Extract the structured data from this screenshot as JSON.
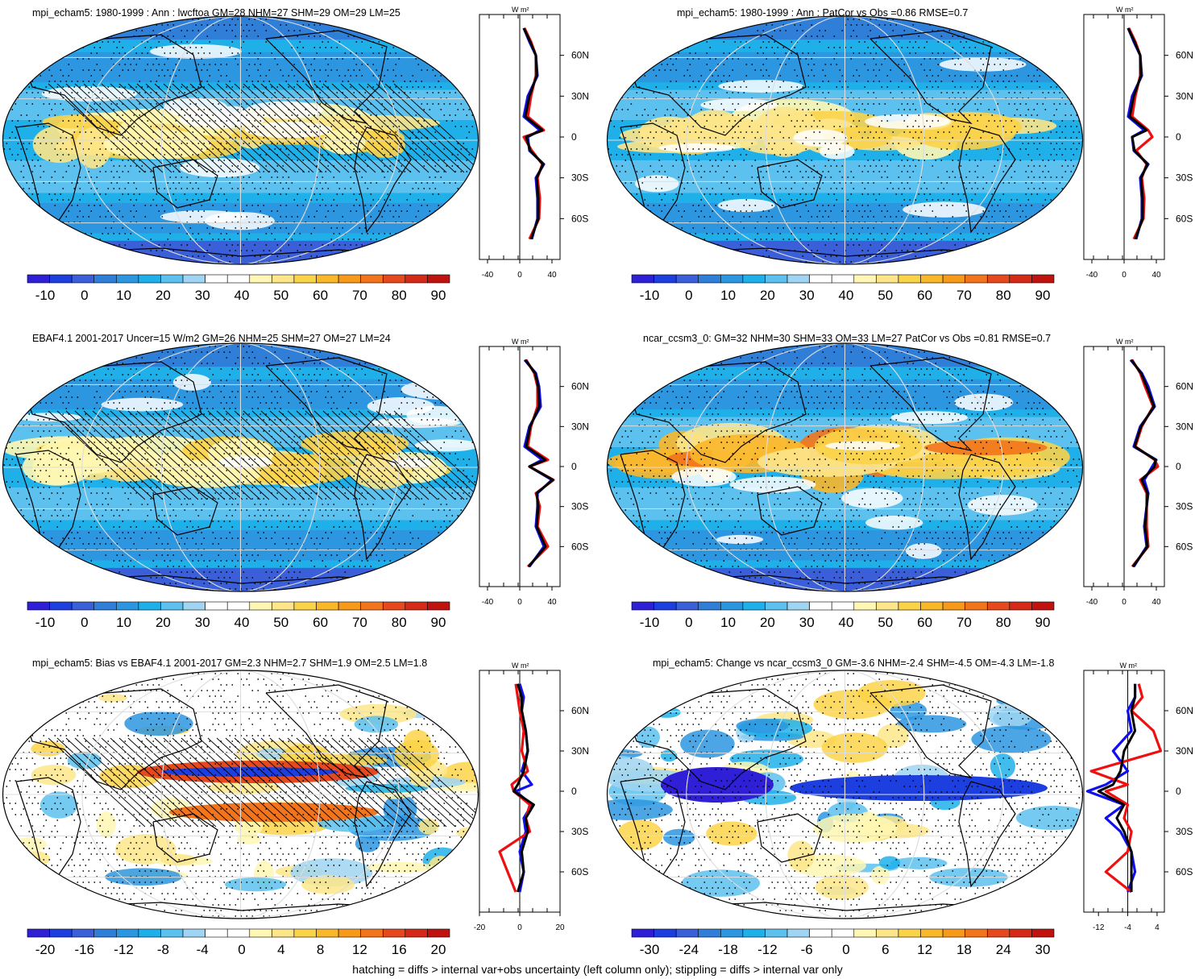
{
  "footer": "hatching = diffs > internal var+obs uncertainty (left column only); stippling = diffs > internal var only",
  "unit_label": "W m²",
  "lat_ticks": [
    "60N",
    "30N",
    "0",
    "30S",
    "60S"
  ],
  "colors": {
    "cold": [
      "#2f1fd6",
      "#1e3fe0",
      "#3a5fd8",
      "#2f7ed8",
      "#2d96e0",
      "#1fb0ea",
      "#5cc1ef",
      "#9fd5f2"
    ],
    "warm": [
      "#fff7b3",
      "#fde68a",
      "#fbd349",
      "#f9b72a",
      "#f79a1a",
      "#f2741c",
      "#e5491d",
      "#d62a19",
      "#c0130f"
    ],
    "model": "#1010ee",
    "obs": "#ee1010",
    "mean": "#000000"
  },
  "panels": [
    {
      "id": "mpi-climatology",
      "title": "mpi_echam5: 1980-1999 : Ann : lwcftoa GM=28 NHM=27 SHM=29 OM=29 LM=25",
      "colorbar": {
        "labels": [
          "-10",
          "0",
          "10",
          "20",
          "30",
          "40",
          "50",
          "60",
          "70",
          "80",
          "90"
        ]
      },
      "profile_ticks": [
        "-40",
        "0",
        "40"
      ]
    },
    {
      "id": "mpi-patcor",
      "title": "mpi_echam5: 1980-1999 : Ann : PatCor vs Obs =0.86 RMSE=0.7",
      "colorbar": {
        "labels": [
          "-10",
          "0",
          "10",
          "20",
          "30",
          "40",
          "50",
          "60",
          "70",
          "80",
          "90"
        ]
      },
      "profile_ticks": [
        "-40",
        "0",
        "40"
      ]
    },
    {
      "id": "ebaf-obs",
      "title": "EBAF4.1 2001-2017 Uncer=15 W/m2 GM=26 NHM=25 SHM=27 OM=27 LM=24",
      "colorbar": {
        "labels": [
          "-10",
          "0",
          "10",
          "20",
          "30",
          "40",
          "50",
          "60",
          "70",
          "80",
          "90"
        ]
      },
      "profile_ticks": [
        "-40",
        "0",
        "40"
      ]
    },
    {
      "id": "ncar-climatology",
      "title": "ncar_ccsm3_0: GM=32 NHM=30 SHM=33 OM=33 LM=27 PatCor vs Obs =0.81 RMSE=0.7",
      "colorbar": {
        "labels": [
          "-10",
          "0",
          "10",
          "20",
          "30",
          "40",
          "50",
          "60",
          "70",
          "80",
          "90"
        ]
      },
      "profile_ticks": [
        "-40",
        "0",
        "40"
      ]
    },
    {
      "id": "mpi-bias",
      "title": "mpi_echam5: Bias vs EBAF4.1 2001-2017 GM=2.3 NHM=2.7 SHM=1.9 OM=2.5 LM=1.8",
      "colorbar": {
        "labels": [
          "-20",
          "-16",
          "-12",
          "-8",
          "-4",
          "0",
          "4",
          "8",
          "12",
          "16",
          "20"
        ]
      },
      "profile_ticks": [
        "-20",
        "0",
        "20"
      ]
    },
    {
      "id": "mpi-change",
      "title": "mpi_echam5: Change vs ncar_ccsm3_0 GM=-3.6 NHM=-2.4 SHM=-4.5 OM=-4.3 LM=-1.8",
      "colorbar": {
        "labels": [
          "-30",
          "-24",
          "-18",
          "-12",
          "-6",
          "0",
          "6",
          "12",
          "18",
          "24",
          "30"
        ]
      },
      "profile_ticks": [
        "-12",
        "-4",
        "4"
      ]
    }
  ],
  "chart_data": [
    {
      "type": "heatmap",
      "title": "mpi_echam5: 1980-1999 : Ann : lwcftoa GM=28 NHM=27 SHM=29 OM=29 LM=25",
      "colorbar_range": [
        -15,
        95
      ],
      "zonal_mean_profile": {
        "xlim": [
          -50,
          50
        ],
        "ylim": [
          -90,
          90
        ],
        "lat": [
          80,
          70,
          60,
          45,
          30,
          15,
          5,
          0,
          -10,
          -20,
          -30,
          -45,
          -60,
          -75
        ],
        "series": [
          {
            "values": [
              5,
              12,
              20,
              22,
              10,
              5,
              25,
              10,
              12,
              30,
              20,
              22,
              22,
              15
            ]
          },
          {
            "values": [
              6,
              14,
              20,
              20,
              14,
              10,
              30,
              5,
              15,
              28,
              22,
              25,
              24,
              12
            ]
          },
          {
            "values": [
              5,
              13,
              20,
              21,
              12,
              7,
              28,
              8,
              13,
              29,
              21,
              23,
              23,
              14
            ]
          }
        ]
      }
    },
    {
      "type": "heatmap",
      "title": "mpi_echam5: 1980-1999 : Ann : PatCor vs Obs =0.86 RMSE=0.7",
      "colorbar_range": [
        -15,
        95
      ],
      "zonal_mean_profile": {
        "xlim": [
          -50,
          50
        ],
        "ylim": [
          -90,
          90
        ],
        "lat": [
          80,
          70,
          60,
          45,
          30,
          15,
          5,
          0,
          -10,
          -20,
          -30,
          -45,
          -60,
          -75
        ],
        "series": [
          {
            "values": [
              5,
              12,
              20,
              22,
              10,
              5,
              25,
              10,
              12,
              30,
              20,
              22,
              22,
              15
            ]
          },
          {
            "values": [
              6,
              14,
              20,
              20,
              14,
              10,
              30,
              35,
              15,
              28,
              22,
              25,
              24,
              12
            ]
          },
          {
            "values": [
              5,
              13,
              20,
              21,
              12,
              7,
              28,
              10,
              13,
              29,
              21,
              23,
              23,
              14
            ]
          }
        ]
      }
    },
    {
      "type": "heatmap",
      "title": "EBAF4.1 2001-2017 Uncer=15 W/m2 GM=26 NHM=25 SHM=27 OM=27 LM=24",
      "colorbar_range": [
        -15,
        95
      ],
      "zonal_mean_profile": {
        "xlim": [
          -50,
          50
        ],
        "ylim": [
          -90,
          90
        ],
        "lat": [
          80,
          70,
          60,
          45,
          30,
          15,
          5,
          0,
          -10,
          -20,
          -30,
          -45,
          -60,
          -75
        ],
        "series": [
          {
            "values": [
              6,
              20,
              24,
              26,
              12,
              6,
              28,
              12,
              40,
              22,
              22,
              20,
              30,
              12
            ]
          },
          {
            "values": [
              8,
              18,
              22,
              22,
              14,
              10,
              35,
              12,
              42,
              20,
              25,
              22,
              35,
              10
            ]
          },
          {
            "values": [
              7,
              19,
              23,
              24,
              13,
              8,
              32,
              12,
              41,
              21,
              23,
              21,
              32,
              11
            ]
          }
        ]
      }
    },
    {
      "type": "heatmap",
      "title": "ncar_ccsm3_0: GM=32 NHM=30 SHM=33 OM=33 LM=27 PatCor vs Obs =0.81 RMSE=0.7",
      "colorbar_range": [
        -15,
        95
      ],
      "zonal_mean_profile": {
        "xlim": [
          -50,
          50
        ],
        "ylim": [
          -90,
          90
        ],
        "lat": [
          80,
          70,
          60,
          45,
          30,
          15,
          5,
          0,
          -10,
          -20,
          -30,
          -45,
          -60,
          -75
        ],
        "series": [
          {
            "values": [
              8,
              22,
              30,
              38,
              20,
              12,
              40,
              35,
              25,
              30,
              28,
              25,
              28,
              12
            ]
          },
          {
            "values": [
              10,
              20,
              26,
              36,
              22,
              14,
              38,
              42,
              20,
              28,
              28,
              28,
              30,
              10
            ]
          },
          {
            "values": [
              9,
              21,
              28,
              37,
              21,
              13,
              39,
              38,
              22,
              29,
              28,
              26,
              29,
              11
            ]
          }
        ]
      }
    },
    {
      "type": "heatmap",
      "title": "mpi_echam5: Bias vs EBAF4.1 2001-2017 GM=2.3 NHM=2.7 SHM=1.9 OM=2.5 LM=1.8",
      "colorbar_range": [
        -22,
        22
      ],
      "zonal_mean_profile": {
        "xlim": [
          -20,
          20
        ],
        "ylim": [
          -90,
          90
        ],
        "lat": [
          80,
          70,
          60,
          45,
          30,
          15,
          5,
          0,
          -10,
          -20,
          -30,
          -45,
          -60,
          -75
        ],
        "series": [
          {
            "values": [
              0,
              2,
              1,
              3,
              4,
              1,
              6,
              -2,
              6,
              2,
              3,
              0,
              2,
              0
            ]
          },
          {
            "values": [
              -2,
              -1,
              0,
              2,
              1,
              4,
              -4,
              -3,
              5,
              3,
              5,
              -10,
              -6,
              -2
            ]
          },
          {
            "values": [
              -1,
              1,
              1,
              3,
              4,
              2,
              -1,
              -3,
              7,
              3,
              4,
              1,
              2,
              -1
            ]
          }
        ]
      }
    },
    {
      "type": "heatmap",
      "title": "mpi_echam5: Change vs ncar_ccsm3_0 GM=-3.6 NHM=-2.4 SHM=-4.5 OM=-4.3 LM=-1.8",
      "colorbar_range": [
        -33,
        33
      ],
      "zonal_mean_profile": {
        "xlim": [
          -16,
          6
        ],
        "ylim": [
          -90,
          90
        ],
        "lat": [
          80,
          70,
          60,
          45,
          30,
          15,
          5,
          0,
          -10,
          -20,
          -30,
          -45,
          -60,
          -75
        ],
        "series": [
          {
            "values": [
              -2,
              -2,
              -4,
              -3,
              -8,
              -4,
              -10,
              -15,
              -5,
              -10,
              -6,
              -3,
              -2,
              -4
            ]
          },
          {
            "values": [
              -1,
              0,
              -3,
              3,
              5,
              -14,
              -4,
              -10,
              -4,
              -5,
              -3,
              -4,
              -10,
              -3
            ]
          },
          {
            "values": [
              -2,
              -2,
              -3,
              -2,
              -5,
              -6,
              -8,
              -12,
              -5,
              -7,
              -5,
              -3,
              -3,
              -3
            ]
          }
        ]
      }
    }
  ]
}
